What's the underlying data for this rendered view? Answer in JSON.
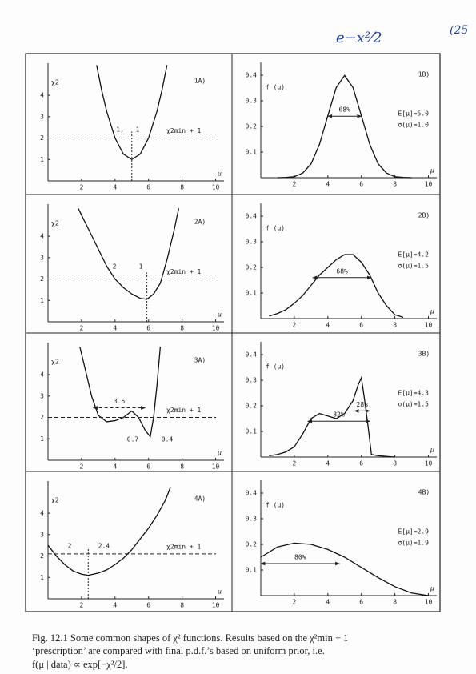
{
  "handwriting": [
    "e−x²⁄2",
    "(25"
  ],
  "caption": [
    "Fig. 12.1  Some common shapes of χ² functions. Results based on the χ²min + 1",
    "‘prescription’ are compared with final p.d.f.’s based on uniform prior, i.e.",
    "f(μ | data) ∝ exp[−χ²/2]."
  ],
  "chart_data": [
    {
      "type": "line",
      "panel_label": "1A)",
      "y_label": "χ2",
      "x_label": "μ",
      "x": [
        2.9,
        3.2,
        3.5,
        4,
        4.5,
        5,
        5.5,
        6,
        6.5,
        6.8,
        7.1
      ],
      "values": [
        5.41,
        4.24,
        3.25,
        2,
        1.25,
        1,
        1.25,
        2,
        3.25,
        4.24,
        5.41
      ],
      "xlim": [
        0,
        10.5
      ],
      "ylim": [
        0,
        5.5
      ],
      "xticks": [
        2,
        4,
        6,
        8,
        10
      ],
      "yticks": [
        1,
        2,
        3,
        4
      ],
      "hline": {
        "value": 2,
        "label": "χ2min + 1"
      },
      "min_x": 5,
      "annotations": [
        "1,",
        "1"
      ]
    },
    {
      "type": "line",
      "panel_label": "1B)",
      "y_label": "f (μ)",
      "x_label": "μ",
      "x": [
        1,
        1.5,
        2,
        2.5,
        3,
        3.5,
        4,
        4.5,
        5,
        5.5,
        6,
        6.5,
        7,
        7.5,
        8,
        8.5,
        9
      ],
      "values": [
        0.0001,
        0.001,
        0.004,
        0.018,
        0.054,
        0.13,
        0.242,
        0.352,
        0.399,
        0.352,
        0.242,
        0.13,
        0.054,
        0.018,
        0.004,
        0.001,
        0.0001
      ],
      "xlim": [
        0,
        10.5
      ],
      "ylim": [
        0,
        0.45
      ],
      "xticks": [
        2,
        4,
        6,
        8,
        10
      ],
      "yticks": [
        0.1,
        0.2,
        0.3,
        0.4
      ],
      "stats": [
        "E[μ]=5.0",
        "σ(μ)=1.0"
      ],
      "intervals": [
        {
          "x": [
            4,
            6
          ],
          "y": 0.24,
          "label": "68%"
        }
      ]
    },
    {
      "type": "line",
      "panel_label": "2A)",
      "y_label": "χ2",
      "x_label": "μ",
      "x": [
        1.8,
        2.5,
        3,
        3.5,
        4,
        4.5,
        5,
        5.5,
        5.9,
        6.3,
        6.7,
        7.1,
        7.5,
        7.8
      ],
      "values": [
        5.3,
        4.2,
        3.4,
        2.6,
        2,
        1.6,
        1.3,
        1.1,
        1.05,
        1.3,
        1.8,
        2.9,
        4.2,
        5.3
      ],
      "xlim": [
        0,
        10.5
      ],
      "ylim": [
        0,
        5.5
      ],
      "xticks": [
        2,
        4,
        6,
        8,
        10
      ],
      "yticks": [
        1,
        2,
        3,
        4
      ],
      "hline": {
        "value": 2,
        "label": "χ2min + 1"
      },
      "min_x": 5.9,
      "annotations": [
        "2",
        "1"
      ]
    },
    {
      "type": "line",
      "panel_label": "2B)",
      "y_label": "f (μ)",
      "x_label": "μ",
      "x": [
        0.5,
        1,
        1.5,
        2,
        2.5,
        3,
        3.5,
        4,
        4.5,
        5,
        5.5,
        6,
        6.5,
        7,
        7.5,
        8,
        8.5
      ],
      "values": [
        0.01,
        0.02,
        0.035,
        0.06,
        0.09,
        0.13,
        0.17,
        0.2,
        0.23,
        0.25,
        0.25,
        0.22,
        0.17,
        0.1,
        0.05,
        0.015,
        0.005
      ],
      "xlim": [
        0,
        10.5
      ],
      "ylim": [
        0,
        0.45
      ],
      "xticks": [
        2,
        4,
        6,
        8,
        10
      ],
      "yticks": [
        0.1,
        0.2,
        0.3,
        0.4
      ],
      "stats": [
        "E[μ]=4.2",
        "σ(μ)=1.5"
      ],
      "intervals": [
        {
          "x": [
            3.1,
            6.6
          ],
          "y": 0.16,
          "label": "68%"
        }
      ]
    },
    {
      "type": "line",
      "panel_label": "3A)",
      "y_label": "χ2",
      "x_label": "μ",
      "x": [
        1.9,
        2.3,
        2.6,
        3,
        3.5,
        4,
        4.5,
        5,
        5.4,
        5.8,
        6.1,
        6.3,
        6.5,
        6.7
      ],
      "values": [
        5.3,
        4,
        3,
        2.1,
        1.8,
        1.85,
        2,
        2.3,
        2,
        1.4,
        1.1,
        2,
        3.5,
        5.3
      ],
      "xlim": [
        0,
        10.5
      ],
      "ylim": [
        0,
        5.5
      ],
      "xticks": [
        2,
        4,
        6,
        8,
        10
      ],
      "yticks": [
        1,
        2,
        3,
        4
      ],
      "hline": {
        "value": 2,
        "label": "χ2min + 1"
      },
      "intervals": [
        {
          "x": [
            2.7,
            5.8
          ],
          "y": 2.45,
          "label": "3.5"
        }
      ],
      "annotations": [
        "0.7",
        "0.4"
      ]
    },
    {
      "type": "line",
      "panel_label": "3B)",
      "y_label": "f (μ)",
      "x_label": "μ",
      "x": [
        0.5,
        1,
        1.5,
        2,
        2.5,
        3,
        3.5,
        4,
        4.5,
        5,
        5.5,
        5.8,
        6,
        6.2,
        6.4,
        6.6,
        7,
        8
      ],
      "values": [
        0.005,
        0.01,
        0.02,
        0.04,
        0.09,
        0.15,
        0.17,
        0.16,
        0.15,
        0.17,
        0.22,
        0.28,
        0.31,
        0.22,
        0.12,
        0.01,
        0.005,
        0
      ],
      "xlim": [
        0,
        10.5
      ],
      "ylim": [
        0,
        0.45
      ],
      "xticks": [
        2,
        4,
        6,
        8,
        10
      ],
      "yticks": [
        0.1,
        0.2,
        0.3,
        0.4
      ],
      "stats": [
        "E[μ]=4.3",
        "σ(μ)=1.5"
      ],
      "intervals": [
        {
          "x": [
            2.8,
            6.5
          ],
          "y": 0.14,
          "label": "82%"
        },
        {
          "x": [
            5.6,
            6.5
          ],
          "y": 0.18,
          "label": "28%"
        }
      ]
    },
    {
      "type": "line",
      "panel_label": "4A)",
      "y_label": "χ2",
      "x_label": "μ",
      "x": [
        0,
        0.5,
        1,
        1.5,
        2,
        2.4,
        3,
        3.5,
        4,
        4.5,
        5,
        5.5,
        6,
        6.5,
        7,
        7.3
      ],
      "values": [
        2.5,
        2,
        1.6,
        1.3,
        1.15,
        1.1,
        1.2,
        1.35,
        1.6,
        1.9,
        2.3,
        2.8,
        3.3,
        3.9,
        4.6,
        5.2
      ],
      "xlim": [
        0,
        10.5
      ],
      "ylim": [
        0,
        5.5
      ],
      "xticks": [
        2,
        4,
        6,
        8,
        10
      ],
      "yticks": [
        1,
        2,
        3,
        4
      ],
      "hline": {
        "value": 2.1,
        "label": "χ2min + 1"
      },
      "min_x": 2.4,
      "annotations": [
        "2",
        "2.4"
      ]
    },
    {
      "type": "line",
      "panel_label": "4B)",
      "y_label": "f (μ)",
      "x_label": "μ",
      "x": [
        0,
        1,
        2,
        3,
        4,
        5,
        6,
        7,
        8,
        9,
        10
      ],
      "values": [
        0.15,
        0.19,
        0.205,
        0.2,
        0.18,
        0.15,
        0.11,
        0.07,
        0.035,
        0.01,
        0
      ],
      "xlim": [
        0,
        10.5
      ],
      "ylim": [
        0,
        0.45
      ],
      "xticks": [
        2,
        4,
        6,
        8,
        10
      ],
      "yticks": [
        0.1,
        0.2,
        0.3,
        0.4
      ],
      "stats": [
        "E[μ]=2.9",
        "σ(μ)=1.9"
      ],
      "intervals": [
        {
          "x": [
            0,
            4.7
          ],
          "y": 0.125,
          "label": "80%"
        }
      ]
    }
  ]
}
